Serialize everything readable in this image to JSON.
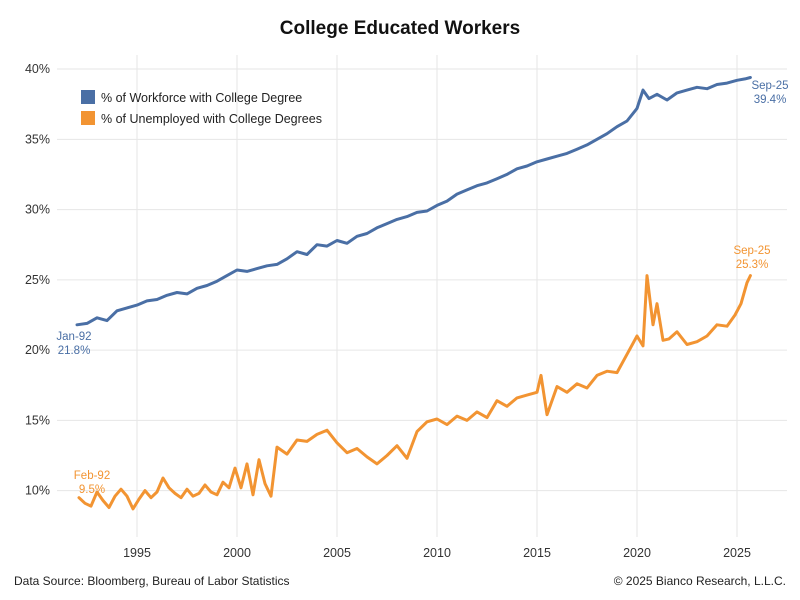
{
  "footer": {
    "source": "Data Source: Bloomberg, Bureau of Labor Statistics",
    "copyright": "© 2025 Bianco Research, L.L.C."
  },
  "chart_data": {
    "type": "line",
    "title": "College Educated Workers",
    "xlabel": "",
    "ylabel": "",
    "xlim": [
      1991.0,
      2027.5
    ],
    "ylim": [
      6.7,
      41.0
    ],
    "x_ticks": [
      1995,
      2000,
      2005,
      2010,
      2015,
      2020,
      2025
    ],
    "x_tick_labels": [
      "1995",
      "2000",
      "2005",
      "2010",
      "2015",
      "2020",
      "2025"
    ],
    "y_ticks": [
      10,
      15,
      20,
      25,
      30,
      35,
      40
    ],
    "y_tick_labels": [
      "10%",
      "15%",
      "20%",
      "25%",
      "30%",
      "35%",
      "40%"
    ],
    "grid": true,
    "legend_position": "top-left",
    "series": [
      {
        "name": "% of Workforce with College Degree",
        "color": "#4a6fa5",
        "x": [
          1992.0,
          1992.5,
          1993.0,
          1993.5,
          1994.0,
          1994.5,
          1995.0,
          1995.5,
          1996.0,
          1996.5,
          1997.0,
          1997.5,
          1998.0,
          1998.5,
          1999.0,
          1999.5,
          2000.0,
          2000.5,
          2001.0,
          2001.5,
          2002.0,
          2002.5,
          2003.0,
          2003.5,
          2004.0,
          2004.5,
          2005.0,
          2005.5,
          2006.0,
          2006.5,
          2007.0,
          2007.5,
          2008.0,
          2008.5,
          2009.0,
          2009.5,
          2010.0,
          2010.5,
          2011.0,
          2011.5,
          2012.0,
          2012.5,
          2013.0,
          2013.5,
          2014.0,
          2014.5,
          2015.0,
          2015.5,
          2016.0,
          2016.5,
          2017.0,
          2017.5,
          2018.0,
          2018.5,
          2019.0,
          2019.5,
          2020.0,
          2020.3,
          2020.6,
          2021.0,
          2021.5,
          2022.0,
          2022.5,
          2023.0,
          2023.5,
          2024.0,
          2024.5,
          2025.0,
          2025.4,
          2025.67
        ],
        "values": [
          21.8,
          21.9,
          22.3,
          22.1,
          22.8,
          23.0,
          23.2,
          23.5,
          23.6,
          23.9,
          24.1,
          24.0,
          24.4,
          24.6,
          24.9,
          25.3,
          25.7,
          25.6,
          25.8,
          26.0,
          26.1,
          26.5,
          27.0,
          26.8,
          27.5,
          27.4,
          27.8,
          27.6,
          28.1,
          28.3,
          28.7,
          29.0,
          29.3,
          29.5,
          29.8,
          29.9,
          30.3,
          30.6,
          31.1,
          31.4,
          31.7,
          31.9,
          32.2,
          32.5,
          32.9,
          33.1,
          33.4,
          33.6,
          33.8,
          34.0,
          34.3,
          34.6,
          35.0,
          35.4,
          35.9,
          36.3,
          37.2,
          38.5,
          37.9,
          38.2,
          37.8,
          38.3,
          38.5,
          38.7,
          38.6,
          38.9,
          39.0,
          39.2,
          39.3,
          39.4
        ],
        "start_annotation": [
          "Jan-92",
          "21.8%"
        ],
        "end_annotation": [
          "Sep-25",
          "39.4%"
        ]
      },
      {
        "name": "% of Unemployed with College Degrees",
        "color": "#f29432",
        "x": [
          1992.1,
          1992.4,
          1992.7,
          1993.0,
          1993.3,
          1993.6,
          1993.9,
          1994.2,
          1994.5,
          1994.8,
          1995.1,
          1995.4,
          1995.7,
          1996.0,
          1996.3,
          1996.6,
          1996.9,
          1997.2,
          1997.5,
          1997.8,
          1998.1,
          1998.4,
          1998.7,
          1999.0,
          1999.3,
          1999.6,
          1999.9,
          2000.2,
          2000.5,
          2000.8,
          2001.1,
          2001.4,
          2001.7,
          2002.0,
          2002.5,
          2003.0,
          2003.5,
          2004.0,
          2004.5,
          2005.0,
          2005.5,
          2006.0,
          2006.5,
          2007.0,
          2007.5,
          2008.0,
          2008.5,
          2009.0,
          2009.5,
          2010.0,
          2010.5,
          2011.0,
          2011.5,
          2012.0,
          2012.5,
          2013.0,
          2013.5,
          2014.0,
          2014.5,
          2015.0,
          2015.2,
          2015.5,
          2016.0,
          2016.5,
          2017.0,
          2017.5,
          2018.0,
          2018.5,
          2019.0,
          2019.5,
          2020.0,
          2020.3,
          2020.5,
          2020.8,
          2021.0,
          2021.3,
          2021.6,
          2022.0,
          2022.5,
          2023.0,
          2023.5,
          2024.0,
          2024.5,
          2024.9,
          2025.2,
          2025.5,
          2025.67
        ],
        "values": [
          9.5,
          9.1,
          8.9,
          9.9,
          9.3,
          8.8,
          9.6,
          10.1,
          9.6,
          8.7,
          9.4,
          10.0,
          9.5,
          9.9,
          10.9,
          10.2,
          9.8,
          9.5,
          10.1,
          9.6,
          9.8,
          10.4,
          9.9,
          9.7,
          10.6,
          10.2,
          11.6,
          10.2,
          11.9,
          9.7,
          12.2,
          10.5,
          9.6,
          13.1,
          12.6,
          13.6,
          13.5,
          14.0,
          14.3,
          13.4,
          12.7,
          13.0,
          12.4,
          11.9,
          12.5,
          13.2,
          12.3,
          14.2,
          14.9,
          15.1,
          14.7,
          15.3,
          15.0,
          15.6,
          15.2,
          16.4,
          16.0,
          16.6,
          16.8,
          17.0,
          18.2,
          15.4,
          17.4,
          17.0,
          17.6,
          17.3,
          18.2,
          18.5,
          18.4,
          19.7,
          21.0,
          20.3,
          25.3,
          21.8,
          23.3,
          20.7,
          20.8,
          21.3,
          20.4,
          20.6,
          21.0,
          21.8,
          21.7,
          22.5,
          23.3,
          24.8,
          25.3
        ],
        "start_annotation": [
          "Feb-92",
          "9.5%"
        ],
        "end_annotation": [
          "Sep-25",
          "25.3%"
        ]
      }
    ]
  }
}
